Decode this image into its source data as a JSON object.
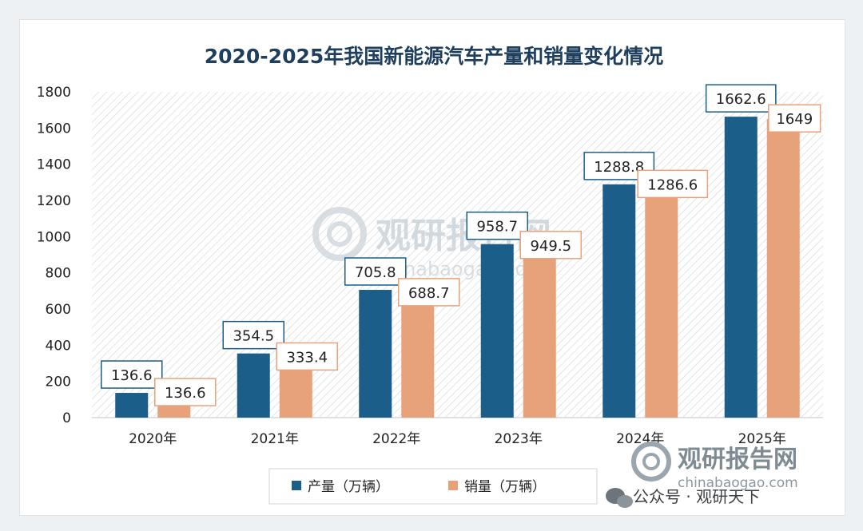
{
  "chart_data": {
    "type": "bar",
    "title": "2020-2025年我国新能源汽车产量和销量变化情况",
    "categories": [
      "2020年",
      "2021年",
      "2022年",
      "2023年",
      "2024年",
      "2025年"
    ],
    "series": [
      {
        "name": "产量（万辆）",
        "color": "#1b5e8a",
        "values": [
          136.6,
          354.5,
          705.8,
          958.7,
          1288.8,
          1662.6
        ]
      },
      {
        "name": "销量（万辆）",
        "color": "#e8a27a",
        "values": [
          136.6,
          333.4,
          688.7,
          949.5,
          1286.6,
          1649
        ]
      }
    ],
    "ylim": [
      0,
      1800
    ],
    "yticks": [
      0,
      200,
      400,
      600,
      800,
      1000,
      1200,
      1400,
      1600,
      1800
    ],
    "xlabel": "",
    "ylabel": "",
    "grid": false,
    "legend": "bottom",
    "plot_background": "diagonal-hatch"
  },
  "watermark": {
    "brand": "观研报告网",
    "url": "chinabaogao.com"
  },
  "footer": {
    "brand": "观研报告网",
    "url": "chinabaogao.com",
    "account": "公众号 · 观研天下"
  }
}
